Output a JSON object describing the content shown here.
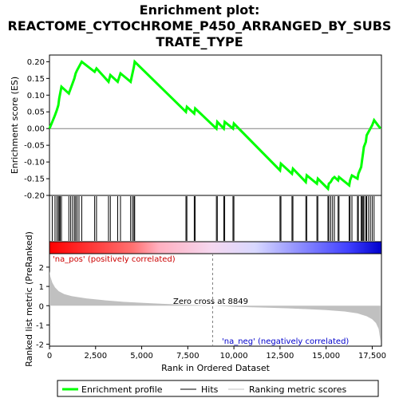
{
  "chart_data": {
    "type": "line",
    "title_lines": [
      "Enrichment plot:",
      "REACTOME_CYTOCHROME_P450_ARRANGED_BY_SUBS",
      "TRATE_TYPE"
    ],
    "es_panel": {
      "ylabel": "Enrichment score (ES)",
      "ylim": [
        -0.2,
        0.22
      ],
      "yticks": [
        -0.2,
        -0.15,
        -0.1,
        -0.05,
        0.0,
        0.05,
        0.1,
        0.15,
        0.2
      ],
      "ytick_labels": [
        "-0.20",
        "-0.15",
        "-0.10",
        "-0.05",
        "0.00",
        "0.05",
        "0.10",
        "0.15",
        "0.20"
      ],
      "xlim": [
        0,
        18000
      ],
      "points": [
        [
          0,
          0.0
        ],
        [
          150,
          0.02
        ],
        [
          300,
          0.04
        ],
        [
          400,
          0.055
        ],
        [
          480,
          0.07
        ],
        [
          530,
          0.09
        ],
        [
          580,
          0.105
        ],
        [
          650,
          0.125
        ],
        [
          1050,
          0.105
        ],
        [
          1150,
          0.12
        ],
        [
          1250,
          0.135
        ],
        [
          1350,
          0.15
        ],
        [
          1420,
          0.165
        ],
        [
          1500,
          0.175
        ],
        [
          1600,
          0.185
        ],
        [
          1750,
          0.2
        ],
        [
          2450,
          0.17
        ],
        [
          2550,
          0.18
        ],
        [
          3200,
          0.14
        ],
        [
          3300,
          0.16
        ],
        [
          3700,
          0.14
        ],
        [
          3850,
          0.165
        ],
        [
          4400,
          0.14
        ],
        [
          4500,
          0.165
        ],
        [
          4580,
          0.185
        ],
        [
          4620,
          0.2
        ],
        [
          7400,
          0.05
        ],
        [
          7450,
          0.065
        ],
        [
          7850,
          0.045
        ],
        [
          7900,
          0.06
        ],
        [
          9050,
          0.0
        ],
        [
          9100,
          0.02
        ],
        [
          9450,
          0.0
        ],
        [
          9500,
          0.02
        ],
        [
          9950,
          0.0
        ],
        [
          10000,
          0.015
        ],
        [
          12500,
          -0.125
        ],
        [
          12550,
          -0.105
        ],
        [
          13150,
          -0.135
        ],
        [
          13200,
          -0.12
        ],
        [
          13900,
          -0.16
        ],
        [
          13950,
          -0.14
        ],
        [
          14500,
          -0.165
        ],
        [
          14550,
          -0.15
        ],
        [
          15100,
          -0.18
        ],
        [
          15150,
          -0.165
        ],
        [
          15250,
          -0.16
        ],
        [
          15350,
          -0.15
        ],
        [
          15450,
          -0.145
        ],
        [
          15650,
          -0.155
        ],
        [
          15700,
          -0.145
        ],
        [
          16250,
          -0.17
        ],
        [
          16300,
          -0.155
        ],
        [
          16400,
          -0.14
        ],
        [
          16700,
          -0.15
        ],
        [
          16750,
          -0.135
        ],
        [
          16900,
          -0.115
        ],
        [
          16950,
          -0.095
        ],
        [
          17000,
          -0.075
        ],
        [
          17050,
          -0.055
        ],
        [
          17150,
          -0.04
        ],
        [
          17200,
          -0.02
        ],
        [
          17300,
          -0.01
        ],
        [
          17400,
          0.0
        ],
        [
          17500,
          0.01
        ],
        [
          17600,
          0.025
        ],
        [
          17950,
          0.0
        ]
      ]
    },
    "hits_x": [
      150,
      300,
      400,
      480,
      530,
      580,
      650,
      1050,
      1150,
      1250,
      1350,
      1420,
      1500,
      1600,
      1750,
      2450,
      2550,
      3200,
      3300,
      3700,
      3850,
      4400,
      4500,
      4580,
      4620,
      7400,
      7450,
      7850,
      7900,
      9050,
      9100,
      9450,
      9500,
      9950,
      10000,
      12500,
      12550,
      13150,
      13200,
      13900,
      13950,
      14500,
      14550,
      15100,
      15150,
      15250,
      15350,
      15450,
      15650,
      15700,
      16250,
      16300,
      16400,
      16700,
      16750,
      16900,
      16950,
      17000,
      17050,
      17150,
      17200,
      17300,
      17400,
      17500,
      17600
    ],
    "metric_panel": {
      "ylabel": "Ranked list metric (PreRanked)",
      "ylim": [
        -2.1,
        2.7
      ],
      "yticks": [
        -2,
        -1,
        0,
        1,
        2
      ],
      "ytick_labels": [
        "-2",
        "-1",
        "0",
        "1",
        "2"
      ],
      "xlabel": "Rank in Ordered Dataset",
      "xticks": [
        0,
        2500,
        5000,
        7500,
        10000,
        12500,
        15000,
        17500
      ],
      "xtick_labels": [
        "0",
        "2,500",
        "5,000",
        "7,500",
        "10,000",
        "12,500",
        "15,000",
        "17,500"
      ],
      "zero_cross": 8849,
      "zero_cross_label": "Zero cross at 8849",
      "pos_label": "'na_pos' (positively correlated)",
      "neg_label": "'na_neg' (negatively correlated)",
      "profile": [
        [
          0,
          1.8
        ],
        [
          50,
          1.5
        ],
        [
          150,
          1.2
        ],
        [
          300,
          0.95
        ],
        [
          500,
          0.75
        ],
        [
          800,
          0.6
        ],
        [
          1200,
          0.5
        ],
        [
          2000,
          0.38
        ],
        [
          3000,
          0.28
        ],
        [
          4000,
          0.2
        ],
        [
          5000,
          0.15
        ],
        [
          6000,
          0.1
        ],
        [
          7000,
          0.06
        ],
        [
          8000,
          0.03
        ],
        [
          8849,
          0.0
        ],
        [
          10000,
          -0.05
        ],
        [
          11000,
          -0.08
        ],
        [
          12000,
          -0.11
        ],
        [
          13000,
          -0.14
        ],
        [
          14000,
          -0.18
        ],
        [
          15000,
          -0.23
        ],
        [
          16000,
          -0.3
        ],
        [
          16700,
          -0.4
        ],
        [
          17200,
          -0.55
        ],
        [
          17500,
          -0.7
        ],
        [
          17700,
          -0.9
        ],
        [
          17850,
          -1.2
        ],
        [
          17950,
          -1.85
        ]
      ]
    },
    "legend": [
      "Enrichment profile",
      "Hits",
      "Ranking metric scores"
    ],
    "colors": {
      "profile": "#00ff00",
      "hits": "#000000",
      "metric": "#c0c0c0",
      "zero_line": "#808080"
    }
  }
}
